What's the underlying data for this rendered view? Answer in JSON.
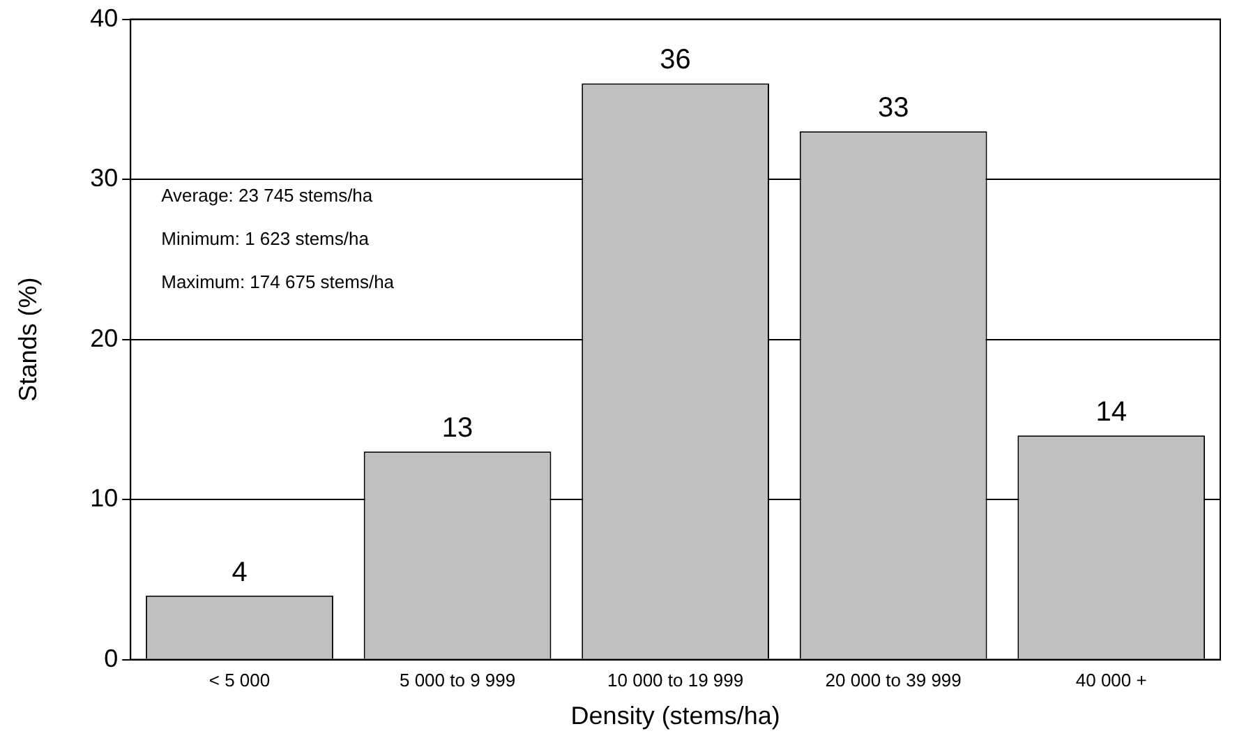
{
  "chart_data": {
    "type": "bar",
    "xlabel": "Density (stems/ha)",
    "ylabel": "Stands (%)",
    "categories": [
      "< 5 000",
      "5 000 to 9 999",
      "10 000 to 19 999",
      "20 000 to 39 999",
      "40 000 +"
    ],
    "values": [
      4,
      13,
      36,
      33,
      14
    ],
    "color": "#c0c0c0",
    "ylim": [
      0,
      40
    ],
    "yticks": [
      0,
      10,
      20,
      30,
      40
    ],
    "grid": "y",
    "data_labels": true,
    "annotations": [
      "Average: 23 745 stems/ha",
      "Minimum: 1 623 stems/ha",
      "Maximum: 174 675 stems/ha"
    ]
  }
}
